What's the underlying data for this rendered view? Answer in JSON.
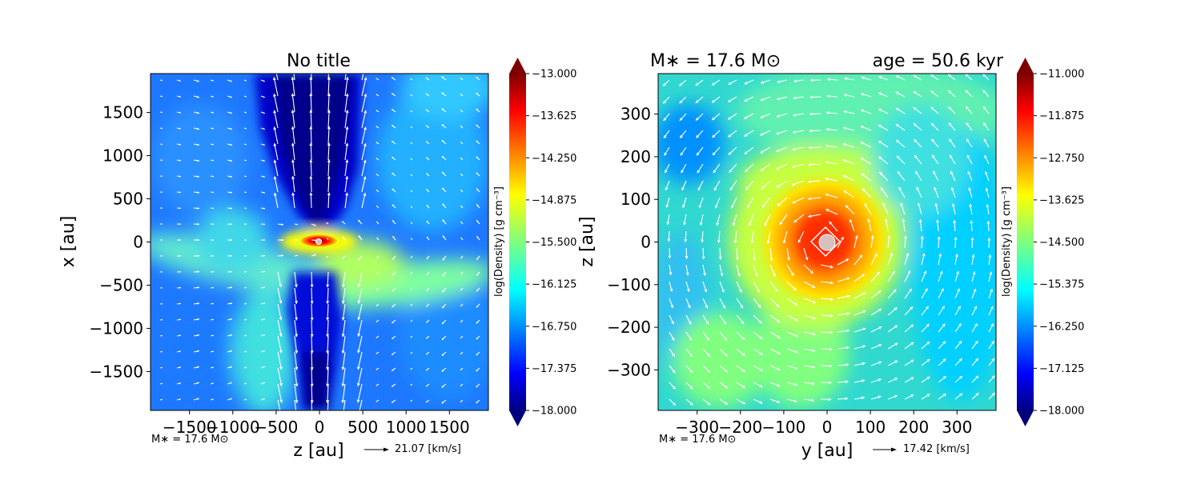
{
  "chart_data": [
    {
      "type": "heatmap",
      "title": "No title",
      "xlabel": "z [au]",
      "ylabel": "x [au]",
      "xlim": [
        -1950,
        1950
      ],
      "ylim": [
        -1950,
        1950
      ],
      "x_ticks": [
        -1500,
        -1000,
        -500,
        0,
        500,
        1000,
        1500
      ],
      "y_ticks": [
        -1500,
        -1000,
        -500,
        0,
        500,
        1000,
        1500
      ],
      "x_tick_labels": [
        "−1500",
        "−1000",
        "−500",
        "0",
        "500",
        "1000",
        "1500"
      ],
      "y_tick_labels": [
        "−1500",
        "−1000",
        "−500",
        "0",
        "500",
        "1000",
        "1500"
      ],
      "colormap": "jet",
      "colorbar": {
        "label": "log(Density) [g cm⁻³]",
        "range": [
          -18.0,
          -13.0
        ],
        "ticks": [
          -13.0,
          -13.625,
          -14.25,
          -14.875,
          -15.5,
          -16.125,
          -16.75,
          -17.375,
          -18.0
        ],
        "tick_labels": [
          "−13.000",
          "−13.625",
          "−14.250",
          "−14.875",
          "−15.500",
          "−16.125",
          "−16.750",
          "−17.375",
          "−18.000"
        ]
      },
      "stellar_mass_note": "M∗ = 17.6 M⊙",
      "vector_key_label": "21.07 [km/s]",
      "star_marker": [
        0,
        0
      ],
      "features": "bipolar low-density outflow cavities along the x axis, dense flattened disk at the center, moderate-density filaments"
    },
    {
      "type": "heatmap",
      "title_left": "M∗ = 17.6 M⊙",
      "title_right": "age = 50.6 kyr",
      "xlabel": "y [au]",
      "ylabel": "z [au]",
      "xlim": [
        -390,
        390
      ],
      "ylim": [
        -395,
        395
      ],
      "x_ticks": [
        -300,
        -200,
        -100,
        0,
        100,
        200,
        300
      ],
      "y_ticks": [
        -300,
        -200,
        -100,
        0,
        100,
        200,
        300
      ],
      "x_tick_labels": [
        "−300",
        "−200",
        "−100",
        "0",
        "100",
        "200",
        "300"
      ],
      "y_tick_labels": [
        "−300",
        "−200",
        "−100",
        "0",
        "100",
        "200",
        "300"
      ],
      "colormap": "jet",
      "colorbar": {
        "label": "log(Density) [g cm⁻³]",
        "range": [
          -18.0,
          -11.0
        ],
        "ticks": [
          -11.0,
          -11.875,
          -12.75,
          -13.625,
          -14.5,
          -15.375,
          -16.25,
          -17.125,
          -18.0
        ],
        "tick_labels": [
          "−11.000",
          "−11.875",
          "−12.750",
          "−13.625",
          "−14.500",
          "−15.375",
          "−16.250",
          "−17.125",
          "−18.000"
        ]
      },
      "stellar_mass_note": "M∗ = 17.6 M⊙",
      "vector_key_label": "17.42 [km/s]",
      "star_marker": [
        0,
        0
      ],
      "features": "dense rotating disk centered on the star with velocity vectors circulating counter-clockwise"
    }
  ],
  "colors": {
    "jet": [
      "#00007f",
      "#0000ff",
      "#007fff",
      "#00ffff",
      "#7fff7f",
      "#ffff00",
      "#ff7f00",
      "#ff0000",
      "#7f0000"
    ],
    "star_fill": "#d9bfbf",
    "vector": "#ffffff"
  }
}
